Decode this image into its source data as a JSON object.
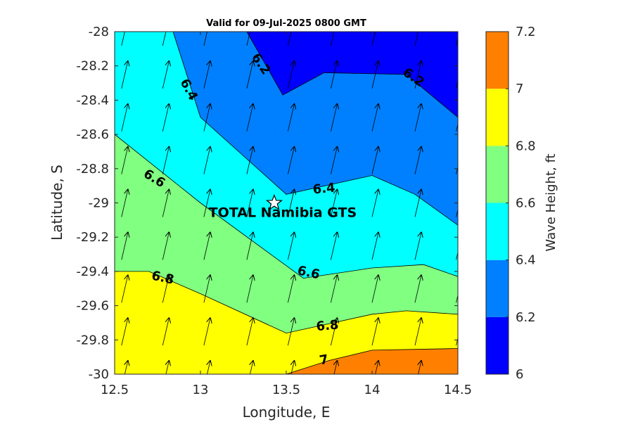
{
  "chart_data": {
    "type": "contour",
    "title": "Valid for 09-Jul-2025 0800 GMT",
    "xlabel": "Longitude, E",
    "ylabel": "Latitude, S",
    "xlim": [
      12.5,
      14.5
    ],
    "ylim": [
      -30,
      -28
    ],
    "xticks": [
      "12.5",
      "13",
      "13.5",
      "14",
      "14.5"
    ],
    "yticks": [
      "-28",
      "-28.2",
      "-28.4",
      "-28.6",
      "-28.8",
      "-29",
      "-29.2",
      "-29.4",
      "-29.6",
      "-29.8",
      "-30"
    ],
    "colorbar": {
      "label": "Wave Height, ft",
      "range": [
        6,
        7.2
      ],
      "ticks": [
        "6",
        "6.2",
        "6.4",
        "6.6",
        "6.8",
        "7",
        "7.2"
      ],
      "bands": [
        {
          "from": 6.0,
          "to": 6.2,
          "color": "#0000ff"
        },
        {
          "from": 6.2,
          "to": 6.4,
          "color": "#0080ff"
        },
        {
          "from": 6.4,
          "to": 6.6,
          "color": "#00ffff"
        },
        {
          "from": 6.6,
          "to": 6.8,
          "color": "#80ff80"
        },
        {
          "from": 6.8,
          "to": 7.0,
          "color": "#ffff00"
        },
        {
          "from": 7.0,
          "to": 7.2,
          "color": "#ff8000"
        }
      ]
    },
    "contours": [
      {
        "level": 6.2,
        "label": "6.2",
        "points": [
          [
            13.27,
            -28.0
          ],
          [
            13.48,
            -28.37
          ],
          [
            13.72,
            -28.24
          ],
          [
            14.2,
            -28.25
          ],
          [
            14.5,
            -28.5
          ]
        ]
      },
      {
        "level": 6.4,
        "label": "6.4",
        "points": [
          [
            12.84,
            -28.0
          ],
          [
            13.0,
            -28.5
          ],
          [
            13.5,
            -28.95
          ],
          [
            14.0,
            -28.84
          ],
          [
            14.25,
            -28.95
          ],
          [
            14.5,
            -29.13
          ]
        ]
      },
      {
        "level": 6.6,
        "label": "6.6",
        "points": [
          [
            12.5,
            -28.6
          ],
          [
            13.0,
            -29.0
          ],
          [
            13.6,
            -29.44
          ],
          [
            14.0,
            -29.38
          ],
          [
            14.3,
            -29.36
          ],
          [
            14.5,
            -29.43
          ]
        ]
      },
      {
        "level": 6.8,
        "label": "6.8",
        "points": [
          [
            12.5,
            -29.4
          ],
          [
            12.7,
            -29.4
          ],
          [
            13.0,
            -29.53
          ],
          [
            13.5,
            -29.76
          ],
          [
            14.0,
            -29.65
          ],
          [
            14.2,
            -29.63
          ],
          [
            14.5,
            -29.65
          ]
        ]
      },
      {
        "level": 7.0,
        "label": "7",
        "points": [
          [
            13.5,
            -30.0
          ],
          [
            13.75,
            -29.92
          ],
          [
            14.0,
            -29.86
          ],
          [
            14.5,
            -29.85
          ]
        ]
      }
    ],
    "contour_labels": [
      {
        "text": "6.2",
        "x": 13.35,
        "y": -28.19,
        "angle": 55
      },
      {
        "text": "6.2",
        "x": 14.24,
        "y": -28.27,
        "angle": 35
      },
      {
        "text": "6.4",
        "x": 12.93,
        "y": -28.34,
        "angle": 62
      },
      {
        "text": "6.6",
        "x": 12.73,
        "y": -28.86,
        "angle": 32
      },
      {
        "text": "6.4",
        "x": 13.72,
        "y": -28.92,
        "angle": -5
      },
      {
        "text": "6.6",
        "x": 13.63,
        "y": -29.41,
        "angle": 12
      },
      {
        "text": "6.8",
        "x": 12.78,
        "y": -29.44,
        "angle": 12
      },
      {
        "text": "6.8",
        "x": 13.74,
        "y": -29.72,
        "angle": -5
      },
      {
        "text": "7",
        "x": 13.72,
        "y": -29.92,
        "angle": -10
      }
    ],
    "site": {
      "name": "TOTAL Namibia GTS",
      "lon": 13.43,
      "lat": -29.0
    },
    "wave_direction_vectors": {
      "lons": [
        12.54,
        12.78,
        13.02,
        13.27,
        13.51,
        13.76,
        14.0,
        14.25,
        14.49
      ],
      "lats": [
        -28.0,
        -28.25,
        -28.5,
        -28.75,
        -29.0,
        -29.25,
        -29.5,
        -29.75,
        -30.0
      ],
      "direction_deg_from_north": 13
    }
  }
}
